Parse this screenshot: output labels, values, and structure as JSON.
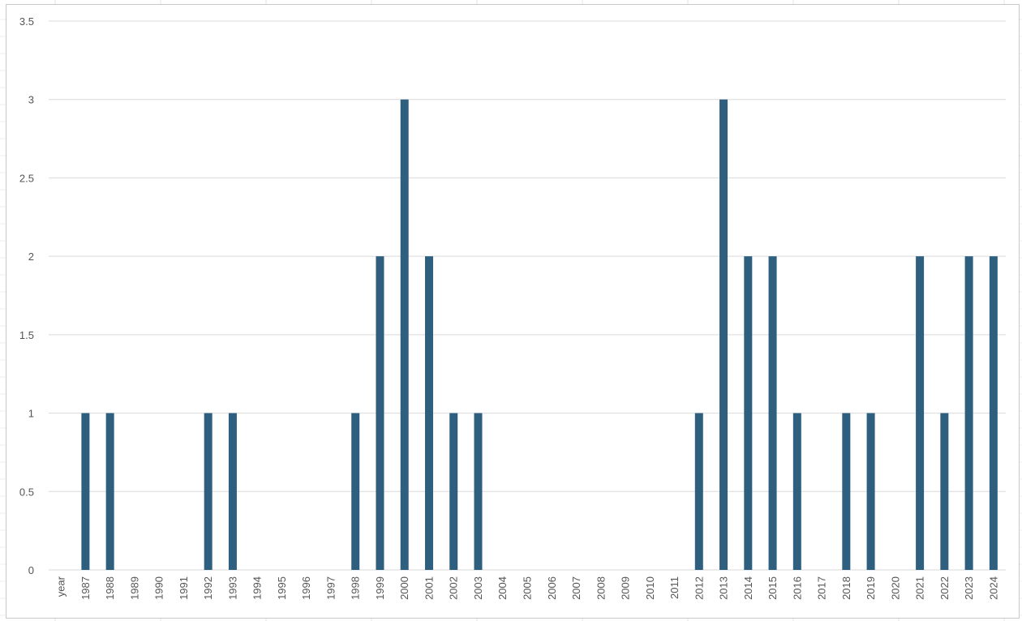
{
  "chart_data": {
    "type": "bar",
    "categories": [
      "year",
      "1987",
      "1988",
      "1989",
      "1990",
      "1991",
      "1992",
      "1993",
      "1994",
      "1995",
      "1996",
      "1997",
      "1998",
      "1999",
      "2000",
      "2001",
      "2002",
      "2003",
      "2004",
      "2005",
      "2006",
      "2007",
      "2008",
      "2009",
      "2010",
      "2011",
      "2012",
      "2013",
      "2014",
      "2015",
      "2016",
      "2017",
      "2018",
      "2019",
      "2020",
      "2021",
      "2022",
      "2023",
      "2024"
    ],
    "values": [
      0,
      1,
      1,
      0,
      0,
      0,
      1,
      1,
      0,
      0,
      0,
      0,
      1,
      2,
      3,
      2,
      1,
      1,
      0,
      0,
      0,
      0,
      0,
      0,
      0,
      0,
      1,
      3,
      2,
      2,
      1,
      0,
      1,
      1,
      0,
      2,
      1,
      2,
      2
    ],
    "title": "",
    "xlabel": "",
    "ylabel": "",
    "ylim": [
      0,
      3.5
    ],
    "yticks": [
      "0",
      "0.5",
      "1",
      "1.5",
      "2",
      "2.5",
      "3",
      "3.5"
    ],
    "grid": true,
    "bar_color": "#2e5f7f",
    "grid_color": "#d9d9d9",
    "legend": "none"
  }
}
